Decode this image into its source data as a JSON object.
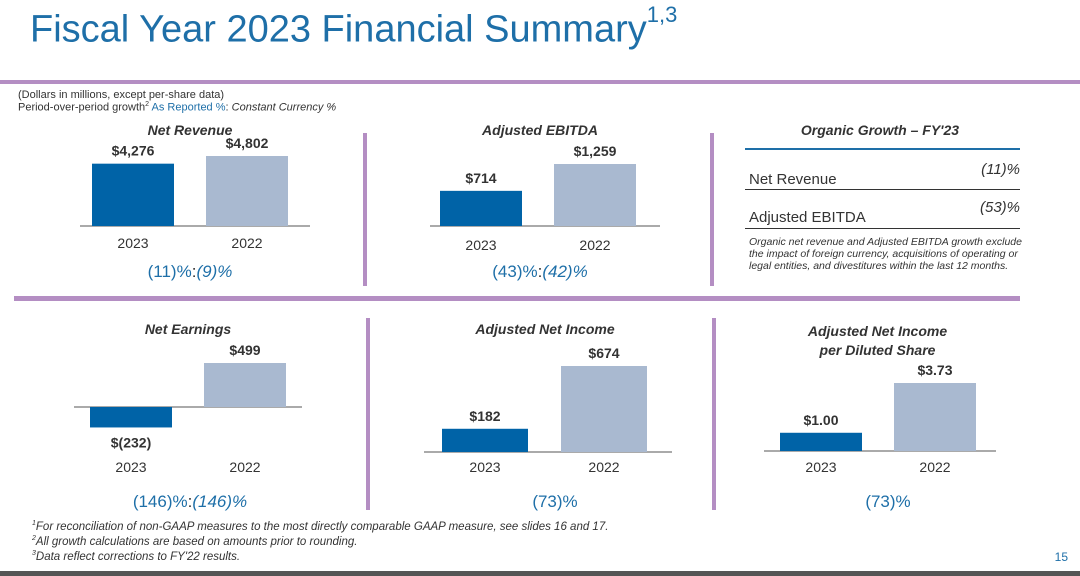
{
  "header": {
    "title": "Fiscal Year 2023 Financial Summary",
    "title_sup": "1,3",
    "units_note": "(Dollars in millions, except per-share data)",
    "growth_note_prefix": "Period-over-period growth",
    "growth_note_sup": "2",
    "growth_note_reported": "As Reported %",
    "growth_note_sep": ":",
    "growth_note_cc": "Constant Currency %"
  },
  "colors": {
    "accent": "#1e6fa8",
    "bar_2023": "#0063a7",
    "bar_2022": "#a9b9d0",
    "divider": "#b48ec3"
  },
  "chart_data": [
    {
      "type": "bar",
      "title": "Net Revenue",
      "categories": [
        "2023",
        "2022"
      ],
      "values": [
        4276,
        4802
      ],
      "labels": [
        "$4,276",
        "$4,802"
      ],
      "growth_reported": "(11)%",
      "growth_sep": ":",
      "growth_cc": "(9)%"
    },
    {
      "type": "bar",
      "title": "Adjusted EBITDA",
      "categories": [
        "2023",
        "2022"
      ],
      "values": [
        714,
        1259
      ],
      "labels": [
        "$714",
        "$1,259"
      ],
      "growth_reported": "(43)%",
      "growth_sep": ":",
      "growth_cc": "(42)%"
    },
    {
      "type": "bar",
      "title": "Net Earnings",
      "categories": [
        "2023",
        "2022"
      ],
      "values": [
        -232,
        499
      ],
      "labels": [
        "$(232)",
        "$499"
      ],
      "growth_reported": "(146)%",
      "growth_sep": ":",
      "growth_cc": "(146)%"
    },
    {
      "type": "bar",
      "title": "Adjusted Net Income",
      "categories": [
        "2023",
        "2022"
      ],
      "values": [
        182,
        674
      ],
      "labels": [
        "$182",
        "$674"
      ],
      "growth_reported": "(73)%",
      "growth_sep": "",
      "growth_cc": ""
    },
    {
      "type": "bar",
      "title": "Adjusted Net Income per Diluted Share",
      "title_line1": "Adjusted Net Income",
      "title_line2": "per Diluted Share",
      "categories": [
        "2023",
        "2022"
      ],
      "values": [
        1.0,
        3.73
      ],
      "labels": [
        "$1.00",
        "$3.73"
      ],
      "growth_reported": "(73)%",
      "growth_sep": "",
      "growth_cc": ""
    }
  ],
  "organic": {
    "title": "Organic Growth – FY'23",
    "rows": [
      {
        "label": "Net Revenue",
        "value": "(11)%"
      },
      {
        "label": "Adjusted EBITDA",
        "value": "(53)%"
      }
    ],
    "note": "Organic net revenue and Adjusted EBITDA growth exclude the impact of foreign currency, acquisitions of operating or legal entities, and divestitures within the last 12 months."
  },
  "footnotes": [
    {
      "sup": "1",
      "text": "For reconciliation of non-GAAP measures to the most directly comparable GAAP measure, see slides 16 and 17."
    },
    {
      "sup": "2",
      "text": "All growth calculations are based on amounts prior to rounding."
    },
    {
      "sup": "3",
      "text": "Data reflect corrections to FY'22 results."
    }
  ],
  "page_number": "15"
}
